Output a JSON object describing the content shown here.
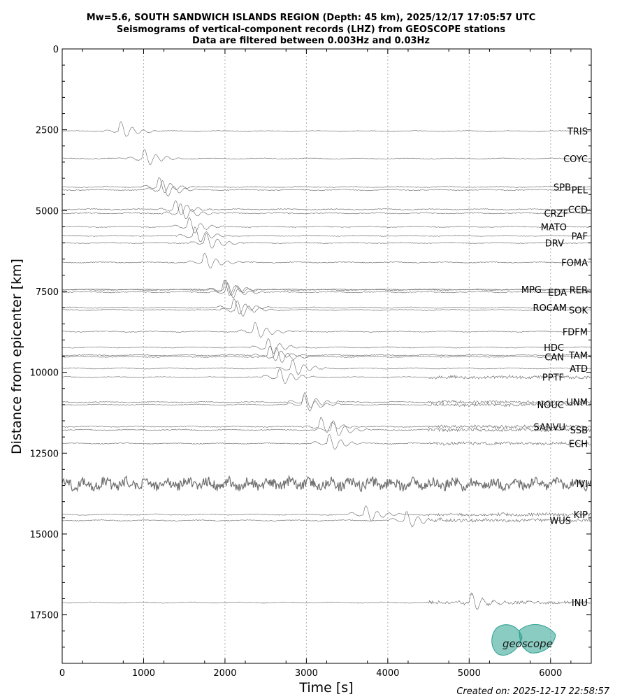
{
  "chart_data": {
    "type": "line",
    "title_lines": [
      "Mw=5.6, SOUTH SANDWICH ISLANDS REGION (Depth: 45 km), 2025/12/17 17:05:57 UTC",
      "Seismograms of vertical-component records (LHZ) from GEOSCOPE stations",
      "Data are filtered between 0.003Hz and 0.03Hz"
    ],
    "xlabel": "Time [s]",
    "ylabel": "Distance from epicenter [km]",
    "xlim": [
      0,
      6500
    ],
    "ylim": [
      19000,
      0
    ],
    "y_inverted": true,
    "xticks": [
      0,
      1000,
      2000,
      3000,
      4000,
      5000,
      6000
    ],
    "yticks": [
      0,
      2500,
      5000,
      7500,
      10000,
      12500,
      15000,
      17500
    ],
    "vertical_grid": "dotted at x major ticks",
    "series": [
      {
        "name": "TRIS",
        "distance": 2540,
        "arrival": 690
      },
      {
        "name": "COYC",
        "distance": 3390,
        "arrival": 980
      },
      {
        "name": "SPB",
        "distance": 4270,
        "arrival": 1160
      },
      {
        "name": "PEL",
        "distance": 4360,
        "arrival": 1200
      },
      {
        "name": "CCD",
        "distance": 4960,
        "arrival": 1360
      },
      {
        "name": "CRZF",
        "distance": 5080,
        "arrival": 1420
      },
      {
        "name": "MATO",
        "distance": 5500,
        "arrival": 1530
      },
      {
        "name": "PAF",
        "distance": 5780,
        "arrival": 1600
      },
      {
        "name": "DRV",
        "distance": 6000,
        "arrival": 1740
      },
      {
        "name": "FOMA",
        "distance": 6600,
        "arrival": 1720
      },
      {
        "name": "MPG",
        "distance": 7440,
        "arrival": 1960
      },
      {
        "name": "EDA",
        "distance": 7520,
        "arrival": 2000
      },
      {
        "name": "RER",
        "distance": 7450,
        "arrival": 1980
      },
      {
        "name": "ROCAM",
        "distance": 8000,
        "arrival": 2080
      },
      {
        "name": "SOK",
        "distance": 8070,
        "arrival": 2120
      },
      {
        "name": "FDFM",
        "distance": 8740,
        "arrival": 2340
      },
      {
        "name": "HDC",
        "distance": 9230,
        "arrival": 2500
      },
      {
        "name": "TAM",
        "distance": 9470,
        "arrival": 2520
      },
      {
        "name": "CAN",
        "distance": 9520,
        "arrival": 2600
      },
      {
        "name": "ATD",
        "distance": 9880,
        "arrival": 2800
      },
      {
        "name": "PPTF",
        "distance": 10150,
        "arrival": 2640
      },
      {
        "name": "UNM",
        "distance": 10920,
        "arrival": 2950
      },
      {
        "name": "NOUC",
        "distance": 11000,
        "arrival": 2940
      },
      {
        "name": "SANVU",
        "distance": 11680,
        "arrival": 3150
      },
      {
        "name": "SSB",
        "distance": 11780,
        "arrival": 3300
      },
      {
        "name": "ECH",
        "distance": 12200,
        "arrival": 3250
      },
      {
        "name": "IVI",
        "distance": 13450,
        "arrival": 0
      },
      {
        "name": "KIP",
        "distance": 14400,
        "arrival": 3700
      },
      {
        "name": "WUS",
        "distance": 14580,
        "arrival": 4200
      },
      {
        "name": "INU",
        "distance": 17120,
        "arrival": 5000
      }
    ]
  },
  "logo": {
    "text": "geoscope",
    "color": "#2aa090"
  },
  "footer": {
    "created": "Created on: 2025-12-17 22:58:57"
  }
}
